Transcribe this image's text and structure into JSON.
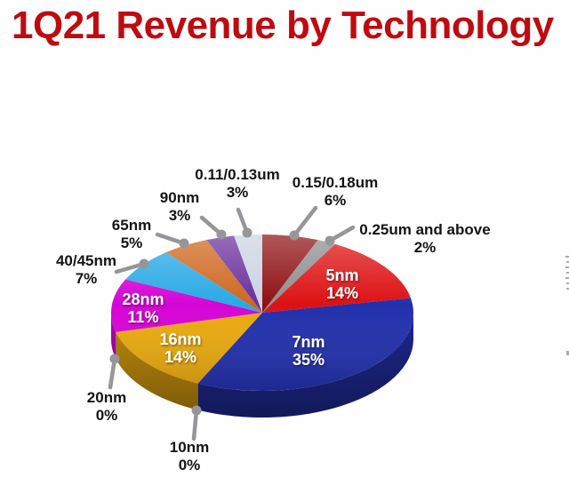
{
  "page": {
    "title": "1Q21 Revenue by Technology",
    "title_color": "#BE0B10",
    "background": "#FEFEFE"
  },
  "chart_data": {
    "type": "pie",
    "title": "1Q21 Revenue by Technology",
    "unit": "%",
    "style": "3d",
    "start_angle_deg": 90,
    "direction": "clockwise",
    "legend_position": "none",
    "callout_color": "#96969A",
    "slices": [
      {
        "label": "0.15/0.18um",
        "value": 6,
        "color": "#8F1013",
        "label_placement": "outside"
      },
      {
        "label": "0.25um and above",
        "value": 2,
        "color": "#8E8E90",
        "label_placement": "outside"
      },
      {
        "label": "5nm",
        "value": 14,
        "color": "#DD1113",
        "label_placement": "inside"
      },
      {
        "label": "7nm",
        "value": 35,
        "color": "#2230AC",
        "label_placement": "inside"
      },
      {
        "label": "10nm",
        "value": 0,
        "color": "#888888",
        "label_placement": "outside"
      },
      {
        "label": "16nm",
        "value": 14,
        "color": "#E9A90F",
        "label_placement": "inside"
      },
      {
        "label": "20nm",
        "value": 0,
        "color": "#888888",
        "label_placement": "outside"
      },
      {
        "label": "28nm",
        "value": 11,
        "color": "#D505D5",
        "label_placement": "inside"
      },
      {
        "label": "40/45nm",
        "value": 7,
        "color": "#29A9E6",
        "label_placement": "outside"
      },
      {
        "label": "65nm",
        "value": 5,
        "color": "#CE671E",
        "label_placement": "outside"
      },
      {
        "label": "90nm",
        "value": 3,
        "color": "#6A2F9B",
        "label_placement": "outside"
      },
      {
        "label": "0.11/0.13um",
        "value": 3,
        "color": "#C9D4E2",
        "label_placement": "outside"
      }
    ]
  }
}
